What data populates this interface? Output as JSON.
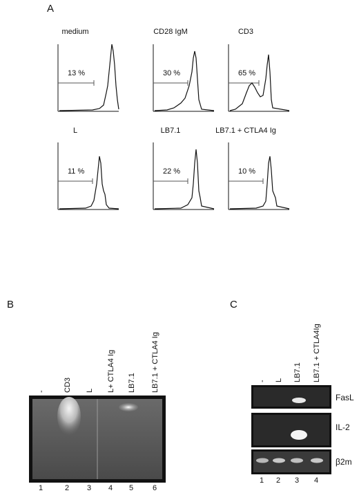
{
  "panelA": {
    "letter": "A",
    "histograms": [
      {
        "title": "medium",
        "pct": "13 %"
      },
      {
        "title": "CD28 IgM",
        "pct": "30 %"
      },
      {
        "title": "CD3",
        "pct": "65 %"
      },
      {
        "title": "L",
        "pct": "11 %"
      },
      {
        "title": "LB7.1",
        "pct": "22 %"
      },
      {
        "title": "LB7.1 + CTLA4 Ig",
        "pct": "10 %"
      }
    ]
  },
  "panelB": {
    "letter": "B",
    "lanes": [
      {
        "label": "-",
        "num": "1"
      },
      {
        "label": "CD3",
        "num": "2"
      },
      {
        "label": "L",
        "num": "3"
      },
      {
        "label": "L+ CTLA4 Ig",
        "num": "4"
      },
      {
        "label": "LB7.1",
        "num": "5"
      },
      {
        "label": "LB7.1 + CTLA4 Ig",
        "num": "6"
      }
    ]
  },
  "panelC": {
    "letter": "C",
    "lanes": [
      {
        "label": "-",
        "num": "1"
      },
      {
        "label": "L",
        "num": "2"
      },
      {
        "label": "LB7.1",
        "num": "3"
      },
      {
        "label": "LB7.1 + CTLA4Ig",
        "num": "4"
      }
    ],
    "bands": [
      "FasL",
      "IL-2",
      "β2m"
    ]
  },
  "colors": {
    "gel_bg": "#3a3a3a",
    "band": "#f2f2f2",
    "ink": "#111111"
  }
}
